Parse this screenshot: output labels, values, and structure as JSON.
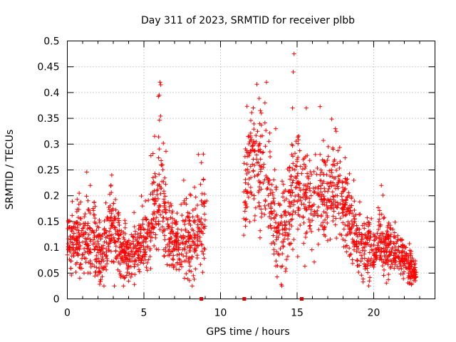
{
  "chart_data": {
    "type": "scatter",
    "title": "Day 311 of 2023, SRMTID for receiver plbb",
    "xlabel": "GPS time / hours",
    "ylabel": "SRMTID / TECUs",
    "xlim": [
      0,
      24
    ],
    "ylim": [
      0,
      0.5
    ],
    "xticks": [
      0,
      5,
      10,
      15,
      20
    ],
    "xtick_labels": [
      "0",
      "5",
      "10",
      "15",
      "20"
    ],
    "yticks": [
      0,
      0.05,
      0.1,
      0.15,
      0.2,
      0.25,
      0.3,
      0.35,
      0.4,
      0.45,
      0.5
    ],
    "ytick_labels": [
      "0",
      "0.05",
      "0.1",
      "0.15",
      "0.2",
      "0.25",
      "0.3",
      "0.35",
      "0.4",
      "0.45",
      "0.5"
    ],
    "grid": true,
    "marker": "+",
    "color": "#ff0000",
    "gap_markers_x": [
      8.75,
      11.55,
      15.3
    ],
    "envelope": [
      [
        0.0,
        0.1,
        0.05
      ],
      [
        0.5,
        0.11,
        0.05
      ],
      [
        1.0,
        0.12,
        0.06
      ],
      [
        1.5,
        0.13,
        0.08
      ],
      [
        2.0,
        0.09,
        0.05
      ],
      [
        2.5,
        0.11,
        0.06
      ],
      [
        3.0,
        0.14,
        0.08
      ],
      [
        3.5,
        0.09,
        0.05
      ],
      [
        4.0,
        0.08,
        0.04
      ],
      [
        4.5,
        0.09,
        0.05
      ],
      [
        5.0,
        0.1,
        0.05
      ],
      [
        5.5,
        0.15,
        0.07
      ],
      [
        6.0,
        0.23,
        0.12
      ],
      [
        6.5,
        0.13,
        0.07
      ],
      [
        7.0,
        0.1,
        0.05
      ],
      [
        7.5,
        0.11,
        0.06
      ],
      [
        8.0,
        0.11,
        0.07
      ],
      [
        8.5,
        0.13,
        0.07
      ],
      [
        9.0,
        0.17,
        0.08
      ],
      [
        9.5,
        null,
        0
      ],
      [
        10.0,
        null,
        0
      ],
      [
        10.5,
        null,
        0
      ],
      [
        11.0,
        null,
        0
      ],
      [
        11.5,
        0.18,
        0.07
      ],
      [
        12.0,
        0.28,
        0.1
      ],
      [
        12.5,
        0.26,
        0.1
      ],
      [
        13.0,
        0.23,
        0.09
      ],
      [
        13.5,
        0.16,
        0.08
      ],
      [
        14.0,
        0.13,
        0.07
      ],
      [
        14.5,
        0.19,
        0.1
      ],
      [
        15.0,
        0.22,
        0.09
      ],
      [
        15.5,
        0.2,
        0.08
      ],
      [
        16.0,
        0.17,
        0.08
      ],
      [
        16.5,
        0.2,
        0.08
      ],
      [
        17.0,
        0.21,
        0.08
      ],
      [
        17.5,
        0.23,
        0.1
      ],
      [
        18.0,
        0.19,
        0.08
      ],
      [
        18.5,
        0.14,
        0.07
      ],
      [
        19.0,
        0.11,
        0.06
      ],
      [
        19.5,
        0.1,
        0.06
      ],
      [
        20.0,
        0.09,
        0.05
      ],
      [
        20.5,
        0.11,
        0.06
      ],
      [
        21.0,
        0.09,
        0.05
      ],
      [
        21.5,
        0.1,
        0.05
      ],
      [
        22.0,
        0.07,
        0.04
      ],
      [
        22.5,
        0.06,
        0.03
      ],
      [
        22.8,
        0.05,
        0.02
      ]
    ],
    "peaks": [
      [
        6.05,
        0.42
      ],
      [
        6.1,
        0.415
      ],
      [
        6.0,
        0.395
      ],
      [
        12.6,
        0.365
      ],
      [
        12.9,
        0.38
      ],
      [
        13.0,
        0.42
      ],
      [
        14.8,
        0.475
      ],
      [
        14.75,
        0.44
      ],
      [
        14.7,
        0.37
      ],
      [
        15.6,
        0.37
      ],
      [
        17.5,
        0.33
      ],
      [
        17.55,
        0.325
      ],
      [
        1.5,
        0.22
      ],
      [
        2.9,
        0.24
      ],
      [
        8.55,
        0.28
      ],
      [
        16.5,
        0.28
      ],
      [
        18.7,
        0.23
      ],
      [
        20.5,
        0.22
      ],
      [
        9.1,
        0.19
      ],
      [
        13.6,
        0.33
      ],
      [
        0.1,
        0.15
      ],
      [
        5.1,
        0.19
      ],
      [
        7.6,
        0.23
      ],
      [
        4.9,
        0.18
      ],
      [
        19.8,
        0.12
      ]
    ],
    "n_points": 2100
  }
}
